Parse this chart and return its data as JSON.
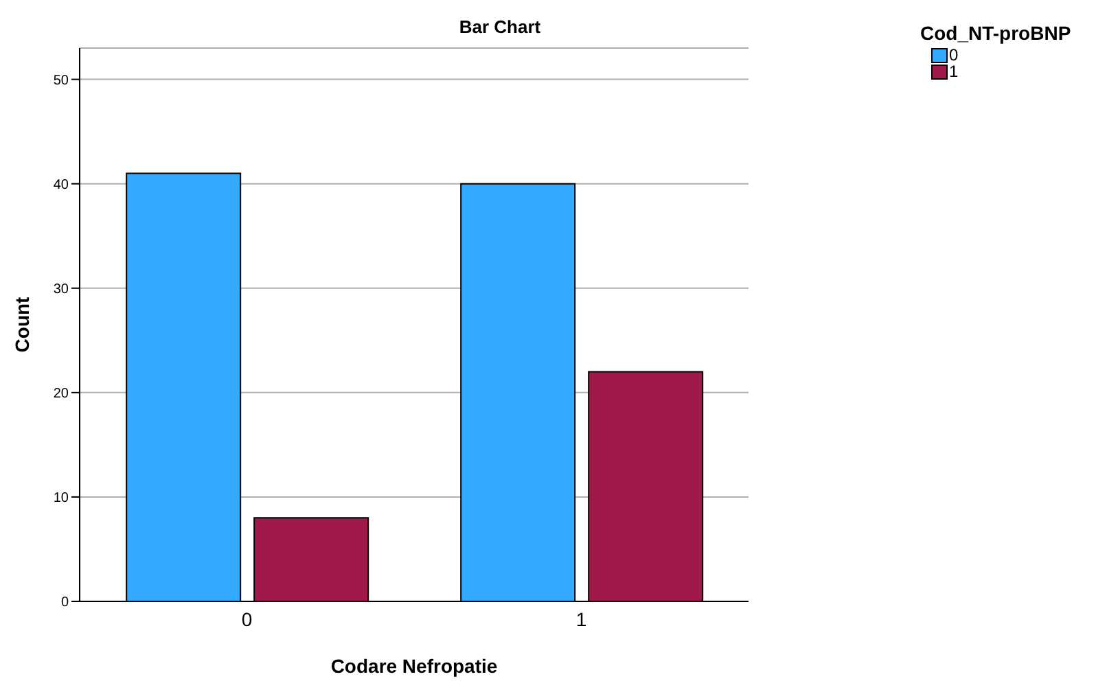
{
  "chart_data": {
    "type": "bar",
    "title": "Bar Chart",
    "xlabel": "Codare  Nefropatie",
    "ylabel": "Count",
    "legend_title": "Cod_NT-proBNP",
    "categories": [
      "0",
      "1"
    ],
    "series": [
      {
        "name": "0",
        "color": "#33aaff",
        "values": [
          41,
          40
        ]
      },
      {
        "name": "1",
        "color": "#a0194b",
        "values": [
          8,
          22
        ]
      }
    ],
    "ylim": [
      0,
      53
    ],
    "yticks": [
      0,
      10,
      20,
      30,
      40,
      50
    ],
    "grid": "y",
    "legend": "top right"
  }
}
